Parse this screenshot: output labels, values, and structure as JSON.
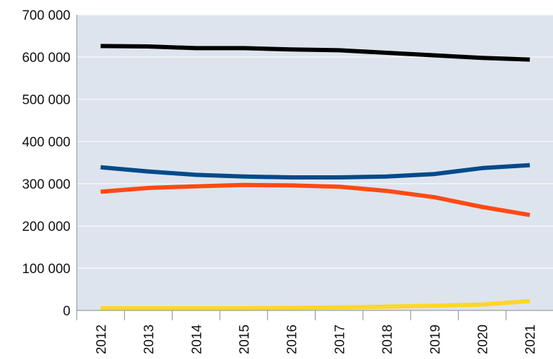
{
  "chart_data": {
    "type": "line",
    "title": "",
    "xlabel": "",
    "ylabel": "",
    "categories": [
      "2012",
      "2013",
      "2014",
      "2015",
      "2016",
      "2017",
      "2018",
      "2019",
      "2020",
      "2021"
    ],
    "ylim": [
      0,
      700000
    ],
    "yticks": [
      0,
      100000,
      200000,
      300000,
      400000,
      500000,
      600000,
      700000
    ],
    "ytick_labels": [
      "0",
      "100 000",
      "200 000",
      "300 000",
      "400 000",
      "500 000",
      "600 000",
      "700 000"
    ],
    "grid": true,
    "legend": "none",
    "plot_background": "#dde4ed",
    "series": [
      {
        "color": "#000000",
        "values": [
          626000,
          625000,
          621000,
          621000,
          618000,
          616000,
          610000,
          604000,
          598000,
          594000
        ]
      },
      {
        "color": "#004a8a",
        "values": [
          339000,
          329000,
          321000,
          317000,
          315000,
          315000,
          317000,
          323000,
          337000,
          344000
        ]
      },
      {
        "color": "#ff4a14",
        "values": [
          281000,
          290000,
          294000,
          297000,
          296000,
          293000,
          283000,
          268000,
          245000,
          226000
        ]
      },
      {
        "color": "#ffd726",
        "values": [
          5000,
          5000,
          5000,
          5000,
          6000,
          7000,
          9000,
          11000,
          14000,
          22000
        ]
      }
    ]
  }
}
